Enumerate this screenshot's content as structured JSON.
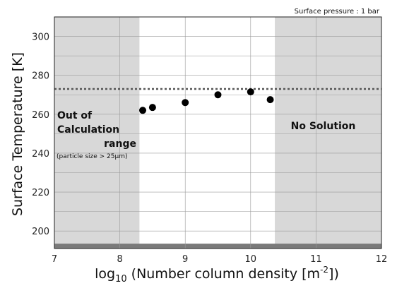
{
  "chart_data": {
    "type": "scatter",
    "title": "",
    "note": "Surface pressure : 1 bar",
    "xlabel": {
      "prefix": "log",
      "sub": "10",
      "mid": " (Number column density [m",
      "sup": "-2",
      "suffix": "])"
    },
    "ylabel": "Surface Temperature [K]",
    "xlim": [
      7,
      12
    ],
    "ylim": [
      191,
      310
    ],
    "x_ticks": [
      7,
      8,
      9,
      10,
      11,
      12
    ],
    "y_ticks": [
      200,
      220,
      240,
      260,
      280,
      300
    ],
    "grid": true,
    "points": [
      {
        "x": 8.35,
        "y": 262
      },
      {
        "x": 8.5,
        "y": 263.5
      },
      {
        "x": 9.0,
        "y": 266
      },
      {
        "x": 9.5,
        "y": 270
      },
      {
        "x": 10.0,
        "y": 271.5
      },
      {
        "x": 10.3,
        "y": 267.5
      }
    ],
    "reference_line": {
      "y": 273,
      "style": "dotted"
    },
    "shaded_regions": [
      {
        "x_from": 7,
        "x_to": 8.3,
        "label_lines": [
          "Out of",
          "Calculation",
          "range"
        ],
        "sub_label": "(particle size > 25μm)"
      },
      {
        "x_from": 10.37,
        "x_to": 12,
        "label_lines": [
          "No Solution"
        ]
      }
    ],
    "bottom_band": {
      "y_from": 191,
      "y_to": 193.5
    },
    "colors": {
      "shade": "#d8d8d8",
      "band": "#7a7a7a",
      "grid": "#9a9a9a",
      "marker": "#000000",
      "reference": "#555555"
    }
  }
}
